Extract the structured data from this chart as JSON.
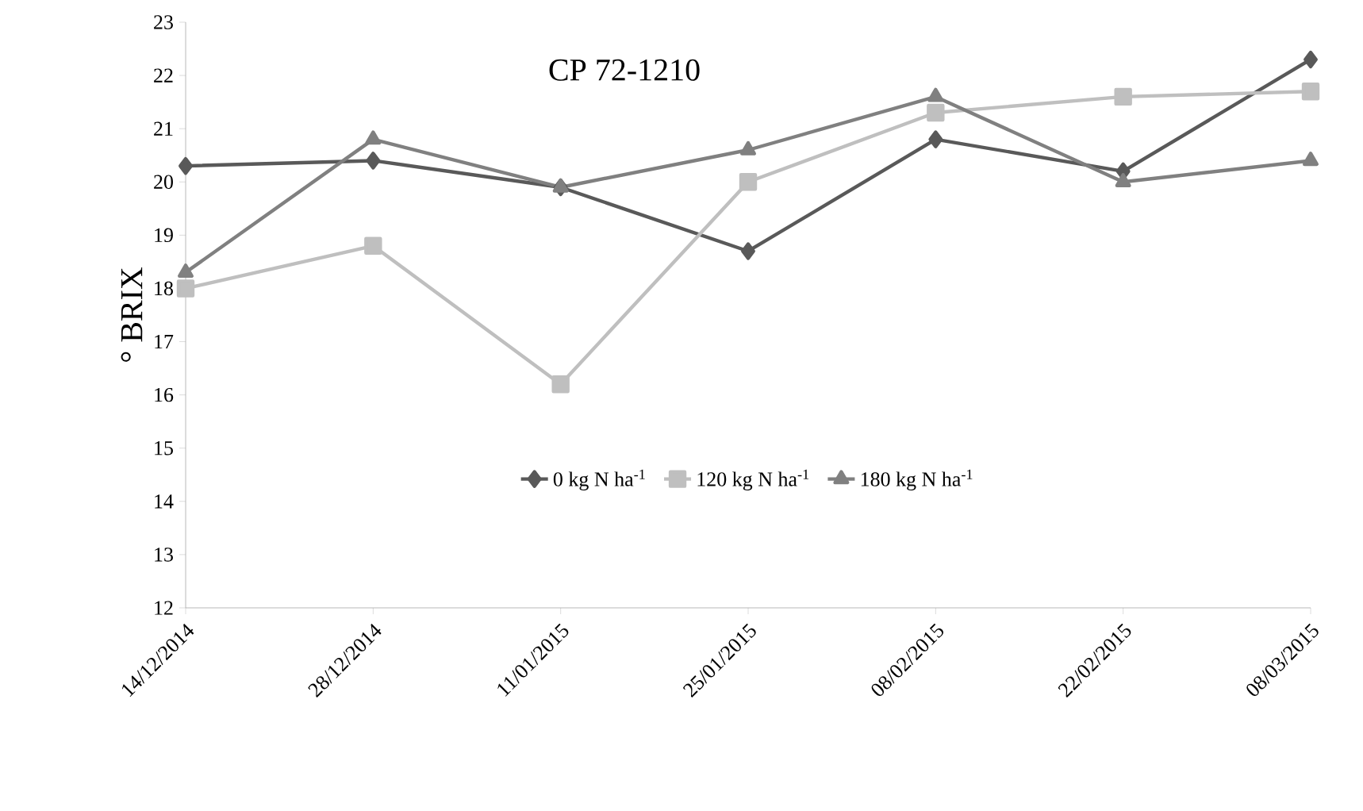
{
  "chart_data": {
    "type": "line",
    "title": "CP 72-1210",
    "ylabel": "° BRIX",
    "categories": [
      "14/12/2014",
      "28/12/2014",
      "11/01/2015",
      "25/01/2015",
      "08/02/2015",
      "22/02/2015",
      "08/03/2015"
    ],
    "series": [
      {
        "name": "0 kg N ha$^{-1}$",
        "color": "#595959",
        "marker": "diamond",
        "values": [
          20.3,
          20.4,
          19.9,
          18.7,
          20.8,
          20.2,
          22.3
        ]
      },
      {
        "name": "120 kg N ha$^{-1}$",
        "color": "#bfbfbf",
        "marker": "square",
        "values": [
          18.0,
          18.8,
          16.2,
          20.0,
          21.3,
          21.6,
          21.7
        ]
      },
      {
        "name": "180 kg N ha$^{-1}$",
        "color": "#808080",
        "marker": "triangle",
        "values": [
          18.3,
          20.8,
          19.9,
          20.6,
          21.6,
          20.0,
          20.4
        ]
      }
    ],
    "ylim": [
      12,
      23
    ],
    "yticks": [
      12,
      13,
      14,
      15,
      16,
      17,
      18,
      19,
      20,
      21,
      22,
      23
    ],
    "grid": false,
    "legend": "bottom",
    "line_style": "solid"
  }
}
